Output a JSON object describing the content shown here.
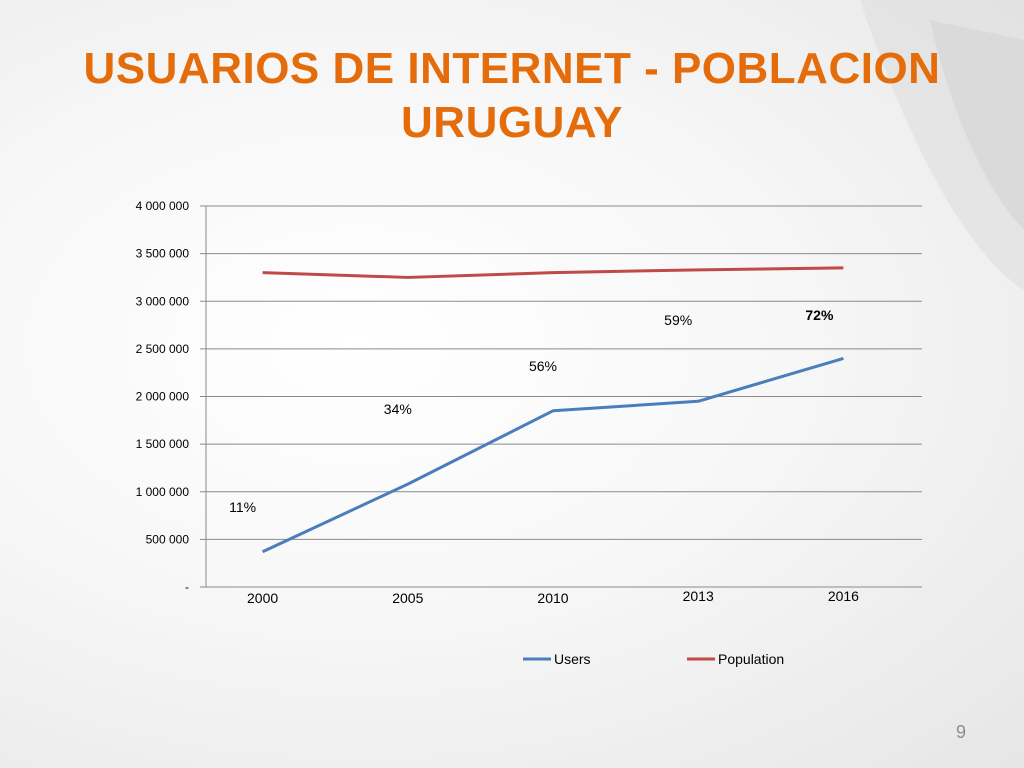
{
  "slide": {
    "title_line1": "USUARIOS DE INTERNET - POBLACION",
    "title_line2": "URUGUAY",
    "page_number": "9"
  },
  "colors": {
    "title": "#e46c0a",
    "users": "#4a7ebb",
    "population": "#be4b48"
  },
  "chart_data": {
    "type": "line",
    "title": "",
    "xlabel": "",
    "ylabel": "",
    "categories": [
      "2000",
      "2005",
      "2010",
      "2013",
      "2016"
    ],
    "ylim": [
      0,
      4000000
    ],
    "yticks": [
      0,
      500000,
      1000000,
      1500000,
      2000000,
      2500000,
      3000000,
      3500000,
      4000000
    ],
    "ytick_labels": [
      "-",
      "500 000",
      "1 000 000",
      "1 500 000",
      "2 000 000",
      "2 500 000",
      "3 000 000",
      "3 500 000",
      "4 000 000"
    ],
    "grid": true,
    "legend": "bottom",
    "series": [
      {
        "name": "Users",
        "values": [
          370000,
          1080000,
          1850000,
          1950000,
          2400000
        ]
      },
      {
        "name": "Population",
        "values": [
          3300000,
          3250000,
          3300000,
          3330000,
          3350000
        ]
      }
    ],
    "annotations": [
      "11%",
      "34%",
      "56%",
      "59%",
      "72%"
    ]
  }
}
